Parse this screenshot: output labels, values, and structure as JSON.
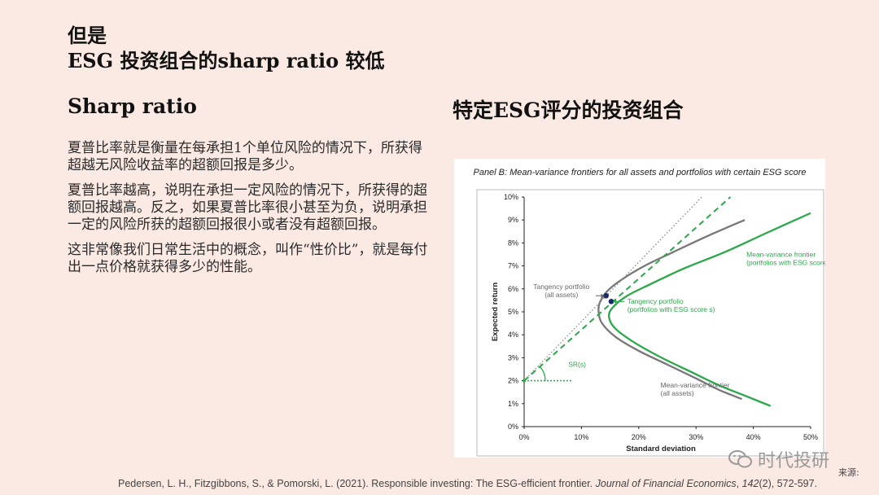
{
  "slide": {
    "title_line1": "但是",
    "title_line2": "ESG 投资组合的sharp ratio 较低",
    "left_heading": "Sharp ratio",
    "right_heading": "特定ESG评分的投资组合",
    "paragraphs": [
      "夏普比率就是衡量在每承担1个单位风险的情况下，所获得超越无风险收益率的超额回报是多少。",
      "夏普比率越高，说明在承担一定风险的情况下，所获得的超额回报越高。反之，如果夏普比率很小甚至为负，说明承担一定的风险所获的超额回报很小或者没有超额回报。",
      "这非常像我们日常生活中的概念，叫作“性价比”，就是每付出一点价格就获得多少的性能。"
    ]
  },
  "citation": {
    "prefix": "Pedersen, L. H., Fitzgibbons, S., & Pomorski, L. (2021). Responsible investing: The ESG-efficient frontier. ",
    "journal": "Journal of Financial Economics",
    "volume": "142",
    "suffix": "(2), 572-597."
  },
  "watermark": {
    "text": "时代投研",
    "icon": "wechat-icon",
    "source_label": "来源:"
  },
  "chart_data": {
    "type": "line",
    "title": "Panel B: Mean-variance frontiers for all assets and portfolios with certain ESG score",
    "xlabel": "Standard deviation",
    "ylabel": "Expected return",
    "xlim": [
      0,
      50
    ],
    "ylim": [
      0,
      10
    ],
    "x_ticks": [
      "0%",
      "10%",
      "20%",
      "30%",
      "40%",
      "50%"
    ],
    "y_ticks": [
      "0%",
      "1%",
      "2%",
      "3%",
      "4%",
      "5%",
      "6%",
      "7%",
      "8%",
      "9%",
      "10%"
    ],
    "grid": false,
    "series": [
      {
        "name": "Mean-variance frontier (all assets)",
        "color": "#777777",
        "points": [
          [
            38.5,
            9.0
          ],
          [
            32,
            8.3
          ],
          [
            26,
            7.6
          ],
          [
            21,
            7.0
          ],
          [
            17,
            6.4
          ],
          [
            14.5,
            5.9
          ],
          [
            13.2,
            5.4
          ],
          [
            13.0,
            5.0
          ],
          [
            13.6,
            4.5
          ],
          [
            16,
            3.9
          ],
          [
            20,
            3.3
          ],
          [
            25,
            2.7
          ],
          [
            30,
            2.1
          ],
          [
            34,
            1.6
          ],
          [
            38,
            1.2
          ]
        ]
      },
      {
        "name": "Mean-variance frontier (portfolios with ESG score s)",
        "color": "#2aa84a",
        "points": [
          [
            50,
            9.3
          ],
          [
            42,
            8.4
          ],
          [
            35,
            7.6
          ],
          [
            28,
            6.9
          ],
          [
            22,
            6.2
          ],
          [
            18,
            5.7
          ],
          [
            15.5,
            5.2
          ],
          [
            14.8,
            4.8
          ],
          [
            15.8,
            4.3
          ],
          [
            19,
            3.7
          ],
          [
            24,
            3.0
          ],
          [
            29,
            2.4
          ],
          [
            34,
            1.8
          ],
          [
            39,
            1.3
          ],
          [
            43,
            0.9
          ]
        ]
      },
      {
        "name": "Capital market line (all assets)",
        "color": "#888888",
        "points": [
          [
            0,
            2.0
          ],
          [
            31,
            10.0
          ]
        ]
      },
      {
        "name": "Capital market line (ESG score s)",
        "color": "#2aa84a",
        "points": [
          [
            0,
            2.0
          ],
          [
            36,
            10.0
          ]
        ]
      },
      {
        "name": "Risk-free reference",
        "color": "#2aa84a",
        "points": [
          [
            0,
            2.0
          ],
          [
            8.5,
            2.0
          ]
        ]
      }
    ],
    "markers": [
      {
        "name": "Tangency portfolio (all assets)",
        "x": 14.3,
        "y": 5.7,
        "color": "#1a2a66"
      },
      {
        "name": "Tangency portfolio (ESG score s)",
        "x": 15.2,
        "y": 5.45,
        "color": "#1a2a66"
      }
    ],
    "annotations": [
      {
        "lines": [
          "Tangency portfolio",
          "(all assets)"
        ],
        "color": "#666666",
        "tx": 6.5,
        "ty": 6.0,
        "ax": 14.0,
        "ay": 5.7,
        "arrow_from": [
          12.5,
          5.7
        ]
      },
      {
        "lines": [
          "Tangency portfolio",
          "(portfolios with ESG score s)"
        ],
        "color": "#2aa84a",
        "tx": 18.0,
        "ty": 5.35,
        "ax": 15.5,
        "ay": 5.45,
        "arrow_from": [
          17.5,
          5.45
        ]
      },
      {
        "lines": [
          "Mean-variance  frontier",
          "(portfolios with ESG score s)"
        ],
        "color": "#2aa84a",
        "tx": 38.8,
        "ty": 7.4,
        "ax": null,
        "ay": null
      },
      {
        "lines": [
          "Mean-variance frontier",
          "(all assets)"
        ],
        "color": "#666666",
        "tx": 23.8,
        "ty": 1.7,
        "ax": null,
        "ay": null
      },
      {
        "lines": [
          "SR(s)"
        ],
        "color": "#2aa84a",
        "tx": 7.7,
        "ty": 2.6,
        "ax": null,
        "ay": null
      }
    ]
  }
}
